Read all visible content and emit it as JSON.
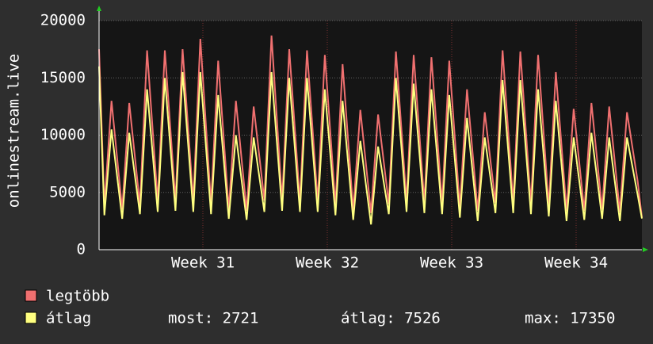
{
  "chart_data": {
    "type": "line",
    "ylabel": "onlinestream.live",
    "x": [
      0,
      0.3,
      0.7,
      1.3,
      1.7,
      2.3,
      2.7,
      3.3,
      3.7,
      4.3,
      4.7,
      5.3,
      5.7,
      6.3,
      6.7,
      7.3,
      7.7,
      8.3,
      8.7,
      9.3,
      9.7,
      10.3,
      10.7,
      11.3,
      11.7,
      12.3,
      12.7,
      13.3,
      13.7,
      14.3,
      14.7,
      15.3,
      15.7,
      16.3,
      16.7,
      17.3,
      17.7,
      18.3,
      18.7,
      19.3,
      19.7,
      20.3,
      20.7,
      21.3,
      21.7,
      22.3,
      22.7,
      23.3,
      23.7,
      24.3,
      24.7,
      25.3,
      25.7,
      26.3,
      26.7,
      27.3,
      27.7,
      28.3,
      28.7,
      29.3,
      29.7,
      30.3,
      30.54
    ],
    "series": [
      {
        "name": "legtöbb",
        "color": "#f07070",
        "values": [
          17500,
          3800,
          13000,
          3500,
          12800,
          3900,
          17400,
          4200,
          17400,
          4300,
          17500,
          4200,
          18400,
          4000,
          16500,
          3500,
          13000,
          3400,
          12500,
          4300,
          18700,
          4300,
          17500,
          4200,
          17400,
          4200,
          17000,
          3900,
          16200,
          3400,
          12200,
          3200,
          11800,
          4000,
          17300,
          4200,
          17000,
          4100,
          16800,
          4000,
          16500,
          3700,
          14000,
          3400,
          12000,
          4100,
          17400,
          4100,
          17300,
          4000,
          17000,
          3800,
          15500,
          3400,
          12300,
          3400,
          12800,
          3500,
          12500,
          3300,
          12000,
          6000,
          2800
        ]
      },
      {
        "name": "átlag",
        "color": "#ffff80",
        "values": [
          16000,
          3000,
          10500,
          2700,
          10200,
          3100,
          14000,
          3300,
          15000,
          3400,
          15500,
          3300,
          15500,
          3100,
          13500,
          2700,
          10000,
          2600,
          9800,
          3300,
          15500,
          3400,
          15000,
          3300,
          15000,
          3300,
          14000,
          3000,
          13000,
          2600,
          9500,
          2200,
          9000,
          3100,
          15000,
          3300,
          14500,
          3200,
          14000,
          3100,
          13500,
          2800,
          11500,
          2500,
          9800,
          3200,
          14800,
          3200,
          14800,
          3100,
          14000,
          2900,
          13000,
          2500,
          9800,
          2600,
          10200,
          2700,
          9800,
          2500,
          9800,
          4800,
          2721
        ]
      }
    ],
    "xlim": [
      0,
      30.54
    ],
    "xticks": [
      {
        "value": 5.84,
        "label": "Week 31"
      },
      {
        "value": 12.84,
        "label": "Week 32"
      },
      {
        "value": 19.84,
        "label": "Week 33"
      },
      {
        "value": 26.84,
        "label": "Week 34"
      }
    ],
    "ylim": [
      0,
      20000
    ],
    "yticks": [
      0,
      5000,
      10000,
      15000,
      20000
    ],
    "grid": true,
    "stats": [
      "most: 2721",
      "átlag: 7526",
      "max: 17350"
    ]
  }
}
